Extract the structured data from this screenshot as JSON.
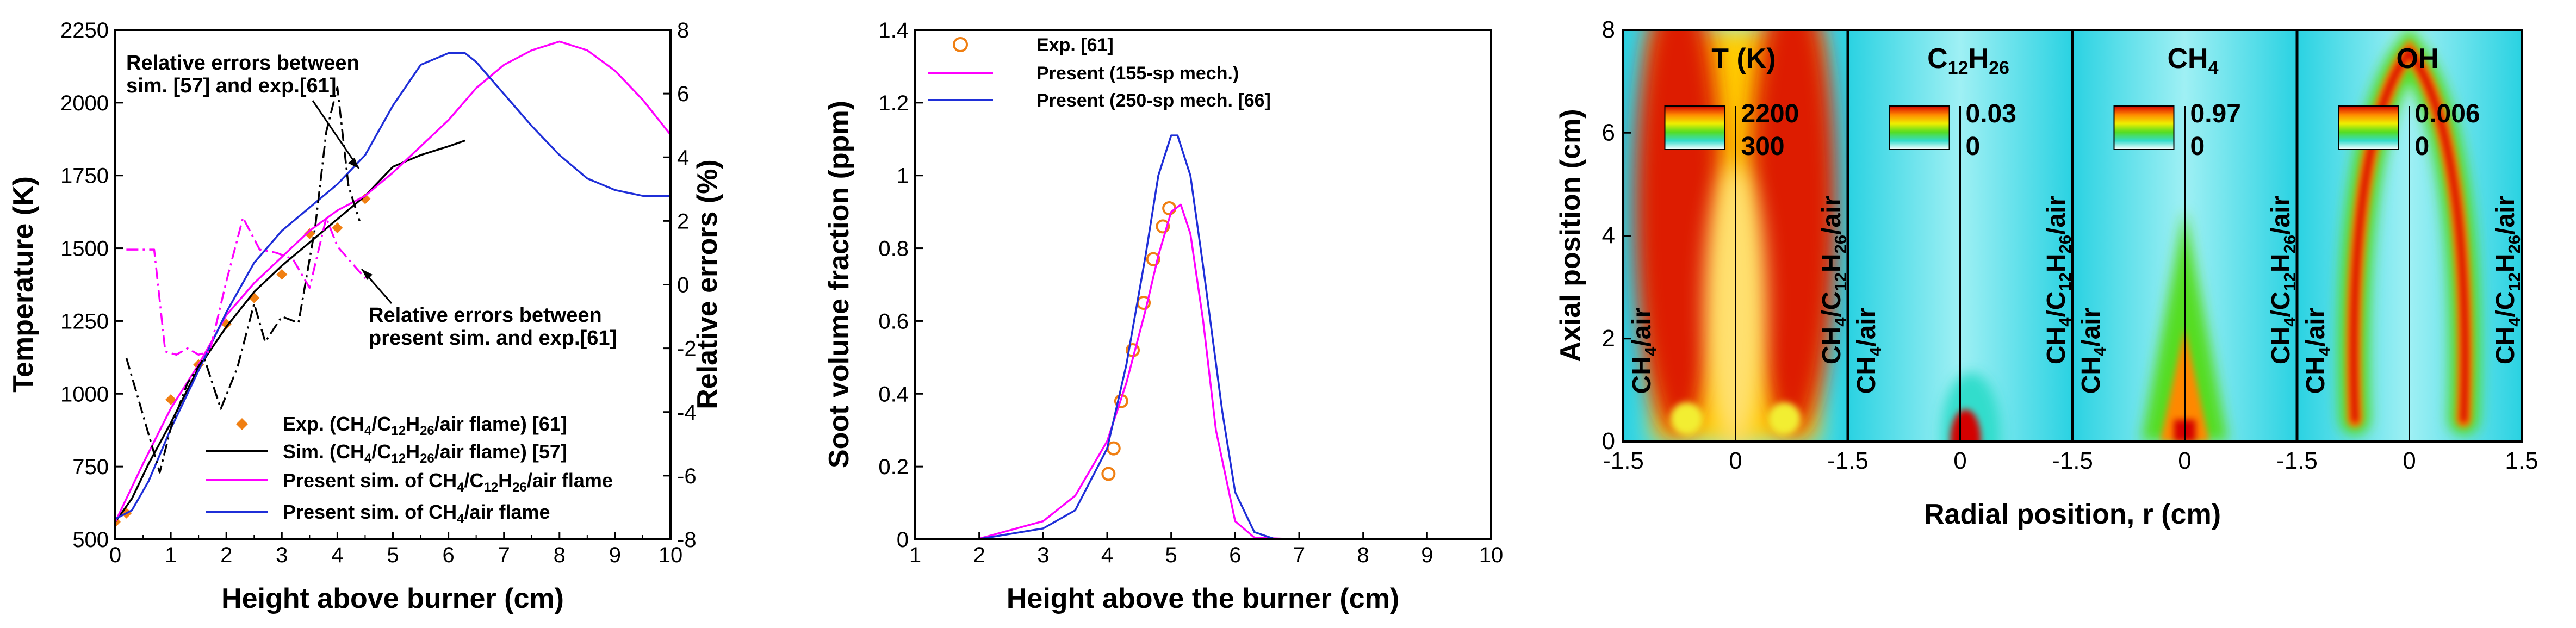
{
  "colors": {
    "black": "#000000",
    "magenta": "#ff00ff",
    "blue": "#1f2fd8",
    "orange": "#f07f12"
  },
  "icons": {
    "exp_marker_left": "diamond",
    "exp_marker_middle": "open-circle"
  },
  "chart_data": [
    {
      "type": "line",
      "panel": "left",
      "xlabel": "Height above burner (cm)",
      "ylabel": "Temperature (K)",
      "y2label": "Relative errors (%)",
      "xlim": [
        0,
        10
      ],
      "ylim": [
        500,
        2250
      ],
      "y2lim": [
        -8,
        8
      ],
      "x_ticks": [
        "0",
        "1",
        "2",
        "3",
        "4",
        "5",
        "6",
        "7",
        "8",
        "9",
        "10"
      ],
      "y_ticks": [
        "500",
        "750",
        "1000",
        "1250",
        "1500",
        "1750",
        "2000",
        "2250"
      ],
      "y2_ticks": [
        "-8",
        "-6",
        "-4",
        "-2",
        "0",
        "2",
        "4",
        "6",
        "8"
      ],
      "legend": [
        "Exp. (CH4/C12H26/air flame) [61]",
        "Sim. (CH4/C12H26/air flame) [57]",
        "Present sim. of CH4/C12H26/air flame",
        "Present sim. of CH4/air flame"
      ],
      "annotations": {
        "top_line1": "Relative errors between",
        "top_line2": "sim. [57] and exp.[61]",
        "bottom_line1": "Relative errors between",
        "bottom_line2": "present sim. and exp.[61]"
      },
      "series": [
        {
          "name": "Exp. (CH4/C12H26/air flame) [61]",
          "axis": "left",
          "style": "marker",
          "x": [
            0.0,
            0.2,
            1.0,
            1.5,
            2.0,
            2.5,
            3.0,
            3.5,
            4.0,
            4.5
          ],
          "y": [
            560,
            590,
            980,
            1100,
            1240,
            1330,
            1410,
            1550,
            1570,
            1670
          ]
        },
        {
          "name": "Sim. (CH4/C12H26/air flame) [57]",
          "axis": "left",
          "style": "solid",
          "x": [
            0.0,
            0.3,
            0.6,
            1.0,
            1.5,
            2.0,
            2.5,
            3.0,
            3.5,
            4.0,
            4.5,
            5.0,
            5.5,
            6.0,
            6.3
          ],
          "y": [
            560,
            640,
            760,
            900,
            1090,
            1230,
            1350,
            1440,
            1520,
            1600,
            1680,
            1780,
            1820,
            1850,
            1870
          ]
        },
        {
          "name": "Present sim. of CH4/C12H26/air flame",
          "axis": "left",
          "style": "solid",
          "x": [
            0.0,
            0.5,
            1.0,
            1.5,
            2.0,
            2.5,
            3.0,
            3.5,
            4.0,
            4.5,
            5.0,
            5.5,
            6.0,
            6.5,
            7.0,
            7.5,
            8.0,
            8.5,
            9.0,
            9.5,
            10.0
          ],
          "y": [
            560,
            760,
            950,
            1100,
            1270,
            1380,
            1470,
            1560,
            1630,
            1680,
            1760,
            1850,
            1940,
            2050,
            2130,
            2180,
            2210,
            2180,
            2110,
            2010,
            1890
          ]
        },
        {
          "name": "Present sim. of CH4/air flame",
          "axis": "left",
          "style": "solid",
          "x": [
            0.0,
            0.3,
            0.6,
            1.0,
            1.5,
            2.0,
            2.5,
            3.0,
            3.5,
            4.0,
            4.5,
            5.0,
            5.5,
            6.0,
            6.3,
            6.5,
            7.0,
            7.5,
            8.0,
            8.5,
            9.0,
            9.5,
            10.0
          ],
          "y": [
            570,
            600,
            700,
            880,
            1080,
            1280,
            1450,
            1560,
            1640,
            1720,
            1820,
            1990,
            2130,
            2170,
            2170,
            2140,
            2030,
            1920,
            1820,
            1740,
            1700,
            1680,
            1680
          ]
        },
        {
          "name": "Relative errors between sim. [57] and exp.[61]",
          "axis": "right",
          "style": "dash-dot",
          "x": [
            0.2,
            0.5,
            0.8,
            1.0,
            1.3,
            1.6,
            1.9,
            2.2,
            2.5,
            2.7,
            3.0,
            3.3,
            3.6,
            3.8,
            4.0,
            4.2,
            4.4
          ],
          "y": [
            -2.3,
            -4.1,
            -5.9,
            -4.5,
            -3.1,
            -2.3,
            -3.9,
            -2.6,
            -0.6,
            -1.8,
            -1.0,
            -1.2,
            1.8,
            4.8,
            6.2,
            3.1,
            2.0
          ]
        },
        {
          "name": "Relative errors between present sim. and exp.[61]",
          "axis": "right",
          "style": "dash-dot",
          "x": [
            0.2,
            0.5,
            0.7,
            0.9,
            1.1,
            1.3,
            1.5,
            1.7,
            2.0,
            2.3,
            2.6,
            2.9,
            3.2,
            3.5,
            3.8,
            4.0,
            4.2,
            4.5
          ],
          "y": [
            1.1,
            1.1,
            1.1,
            -2.1,
            -2.2,
            -2.0,
            -2.2,
            -2.1,
            0.1,
            2.1,
            1.1,
            1.0,
            0.8,
            -0.1,
            2.1,
            1.2,
            0.8,
            0.2
          ]
        }
      ]
    },
    {
      "type": "line",
      "panel": "middle",
      "xlabel": "Height above the burner (cm)",
      "ylabel": "Soot volume fraction (ppm)",
      "xlim": [
        1,
        10
      ],
      "ylim": [
        0,
        1.4
      ],
      "x_ticks": [
        "1",
        "2",
        "3",
        "4",
        "5",
        "6",
        "7",
        "8",
        "9",
        "10"
      ],
      "y_ticks": [
        "0",
        "0.2",
        "0.4",
        "0.6",
        "0.8",
        "1",
        "1.2",
        "1.4"
      ],
      "legend": [
        "Exp. [61]",
        "Present (155-sp mech.)",
        "Present (250-sp mech. [66]"
      ],
      "series": [
        {
          "name": "Exp. [61]",
          "style": "marker",
          "x": [
            4.02,
            4.1,
            4.22,
            4.4,
            4.57,
            4.72,
            4.87,
            4.97
          ],
          "y": [
            0.18,
            0.25,
            0.38,
            0.52,
            0.65,
            0.77,
            0.86,
            0.91
          ]
        },
        {
          "name": "Present (155-sp mech.)",
          "style": "solid",
          "x": [
            1.0,
            2.0,
            3.0,
            3.5,
            4.0,
            4.3,
            4.6,
            4.8,
            5.0,
            5.15,
            5.3,
            5.5,
            5.7,
            6.0,
            6.3,
            7.0
          ],
          "y": [
            0.0,
            0.002,
            0.05,
            0.12,
            0.27,
            0.43,
            0.63,
            0.78,
            0.9,
            0.92,
            0.84,
            0.6,
            0.3,
            0.05,
            0.005,
            0.0
          ]
        },
        {
          "name": "Present (250-sp mech. [66]",
          "style": "solid",
          "x": [
            1.0,
            2.0,
            3.0,
            3.5,
            4.0,
            4.3,
            4.6,
            4.8,
            5.0,
            5.1,
            5.3,
            5.5,
            5.8,
            6.0,
            6.3,
            6.6,
            7.0
          ],
          "y": [
            0.0,
            0.001,
            0.03,
            0.08,
            0.25,
            0.48,
            0.78,
            1.0,
            1.11,
            1.11,
            1.0,
            0.75,
            0.35,
            0.13,
            0.02,
            0.002,
            0.0
          ]
        }
      ]
    },
    {
      "type": "heatmap",
      "panel": "right",
      "xlabel": "Radial position, r (cm)",
      "ylabel": "Axial position (cm)",
      "xlim": [
        -1.5,
        1.5
      ],
      "ylim": [
        0,
        8
      ],
      "x_ticks": [
        "-1.5",
        "0",
        "1.5",
        "-1.5",
        "0",
        "-1.5",
        "0",
        "-1.5",
        "0",
        "1.5"
      ],
      "y_ticks": [
        "0",
        "2",
        "4",
        "6",
        "8"
      ],
      "left_side_label": "CH4/air",
      "right_side_label": "CH4/C12H26/air",
      "panels": [
        {
          "title": "T (K)",
          "max": "2200",
          "min": "300"
        },
        {
          "title": "C12H26",
          "max": "0.03",
          "min": "0"
        },
        {
          "title": "CH4",
          "max": "0.97",
          "min": "0"
        },
        {
          "title": "OH",
          "max": "0.006",
          "min": "0"
        }
      ]
    }
  ]
}
